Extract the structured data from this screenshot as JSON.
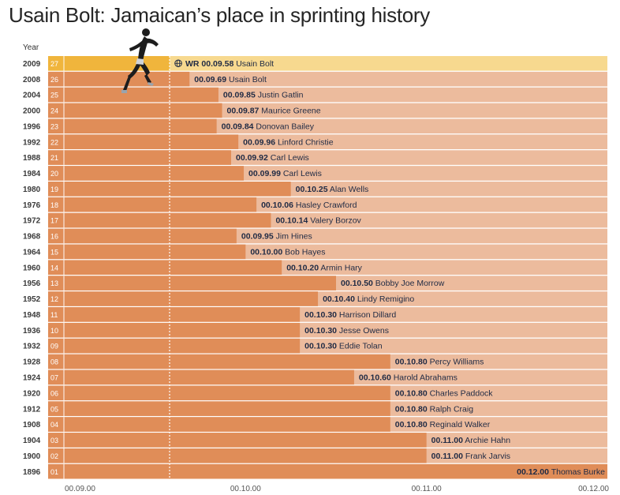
{
  "title": "Usain Bolt: Jamaican’s place in sprinting history",
  "year_header": "Year",
  "colors": {
    "bar": "#e08d58",
    "bar_track": "#ecbb9d",
    "highlight_bar": "#f0b53c",
    "highlight_track": "#f7d98f",
    "label_text": "#1f2a44",
    "divider": "#ffffff",
    "ref_line": "#ffffff"
  },
  "icons": {
    "world_record": "globe-icon",
    "runner": "runner-figure"
  },
  "chart_data": {
    "type": "bar",
    "orientation": "horizontal",
    "title": "Usain Bolt: Jamaican’s place in sprinting history",
    "xlabel": "",
    "ylabel": "Year",
    "xlim": [
      9.0,
      12.0
    ],
    "x_ticks": [
      9.0,
      10.0,
      11.0,
      12.0
    ],
    "x_tick_labels": [
      "00.09.00",
      "00.10.00",
      "00.11.00",
      "00.12.00"
    ],
    "reference_value": 9.58,
    "rows": [
      {
        "year": "2009",
        "index": "27",
        "time": 9.58,
        "time_label": "00.09.58",
        "prefix": "WR",
        "athlete": "Usain Bolt",
        "highlight": true
      },
      {
        "year": "2008",
        "index": "26",
        "time": 9.69,
        "time_label": "00.09.69",
        "athlete": "Usain Bolt"
      },
      {
        "year": "2004",
        "index": "25",
        "time": 9.85,
        "time_label": "00.09.85",
        "athlete": "Justin Gatlin"
      },
      {
        "year": "2000",
        "index": "24",
        "time": 9.87,
        "time_label": "00.09.87",
        "athlete": "Maurice Greene"
      },
      {
        "year": "1996",
        "index": "23",
        "time": 9.84,
        "time_label": "00.09.84",
        "athlete": "Donovan Bailey"
      },
      {
        "year": "1992",
        "index": "22",
        "time": 9.96,
        "time_label": "00.09.96",
        "athlete": "Linford Christie"
      },
      {
        "year": "1988",
        "index": "21",
        "time": 9.92,
        "time_label": "00.09.92",
        "athlete": "Carl Lewis"
      },
      {
        "year": "1984",
        "index": "20",
        "time": 9.99,
        "time_label": "00.09.99",
        "athlete": "Carl Lewis"
      },
      {
        "year": "1980",
        "index": "19",
        "time": 10.25,
        "time_label": "00.10.25",
        "athlete": "Alan Wells"
      },
      {
        "year": "1976",
        "index": "18",
        "time": 10.06,
        "time_label": "00.10.06",
        "athlete": "Hasley Crawford"
      },
      {
        "year": "1972",
        "index": "17",
        "time": 10.14,
        "time_label": "00.10.14",
        "athlete": "Valery Borzov"
      },
      {
        "year": "1968",
        "index": "16",
        "time": 9.95,
        "time_label": "00.09.95",
        "athlete": "Jim Hines"
      },
      {
        "year": "1964",
        "index": "15",
        "time": 10.0,
        "time_label": "00.10.00",
        "athlete": "Bob Hayes"
      },
      {
        "year": "1960",
        "index": "14",
        "time": 10.2,
        "time_label": "00.10.20",
        "athlete": "Armin Hary"
      },
      {
        "year": "1956",
        "index": "13",
        "time": 10.5,
        "time_label": "00.10.50",
        "athlete": "Bobby Joe Morrow"
      },
      {
        "year": "1952",
        "index": "12",
        "time": 10.4,
        "time_label": "00.10.40",
        "athlete": "Lindy Remigino"
      },
      {
        "year": "1948",
        "index": "11",
        "time": 10.3,
        "time_label": "00.10.30",
        "athlete": "Harrison Dillard"
      },
      {
        "year": "1936",
        "index": "10",
        "time": 10.3,
        "time_label": "00.10.30",
        "athlete": "Jesse Owens"
      },
      {
        "year": "1932",
        "index": "09",
        "time": 10.3,
        "time_label": "00.10.30",
        "athlete": "Eddie Tolan"
      },
      {
        "year": "1928",
        "index": "08",
        "time": 10.8,
        "time_label": "00.10.80",
        "athlete": "Percy Williams"
      },
      {
        "year": "1924",
        "index": "07",
        "time": 10.6,
        "time_label": "00.10.60",
        "athlete": "Harold Abrahams"
      },
      {
        "year": "1920",
        "index": "06",
        "time": 10.8,
        "time_label": "00.10.80",
        "athlete": "Charles Paddock"
      },
      {
        "year": "1912",
        "index": "05",
        "time": 10.8,
        "time_label": "00.10.80",
        "athlete": "Ralph Craig"
      },
      {
        "year": "1908",
        "index": "04",
        "time": 10.8,
        "time_label": "00.10.80",
        "athlete": "Reginald Walker"
      },
      {
        "year": "1904",
        "index": "03",
        "time": 11.0,
        "time_label": "00.11.00",
        "athlete": "Archie Hahn"
      },
      {
        "year": "1900",
        "index": "02",
        "time": 11.0,
        "time_label": "00.11.00",
        "athlete": "Frank Jarvis"
      },
      {
        "year": "1896",
        "index": "01",
        "time": 12.0,
        "time_label": "00.12.00",
        "athlete": "Thomas Burke"
      }
    ]
  }
}
